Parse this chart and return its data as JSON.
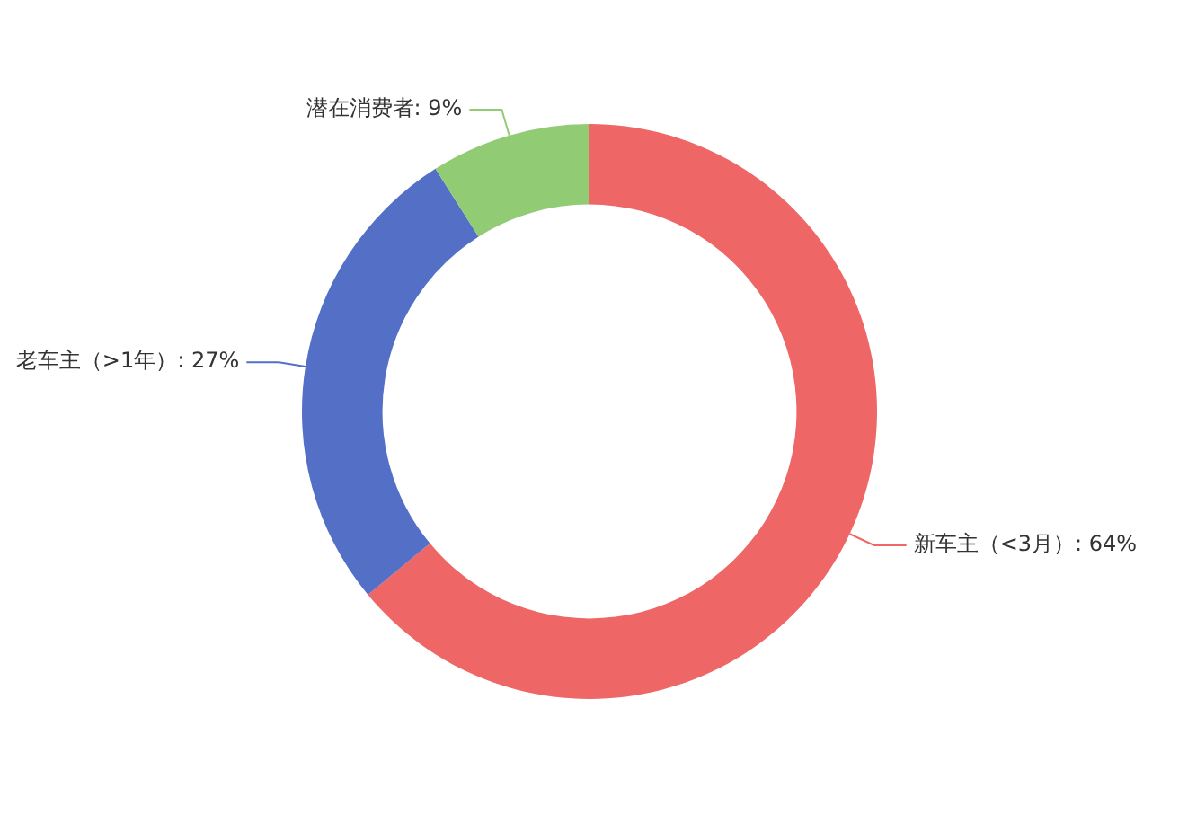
{
  "chart_data": {
    "type": "donut",
    "categories": [
      "新车主（<3月）",
      "老车主（>1年）",
      "潜在消费者"
    ],
    "values": [
      64,
      27,
      9
    ],
    "colors": [
      "#ee6666",
      "#5470c6",
      "#91cc75"
    ],
    "value_labels": [
      "64%",
      "27%",
      "9%"
    ],
    "legend": false
  }
}
